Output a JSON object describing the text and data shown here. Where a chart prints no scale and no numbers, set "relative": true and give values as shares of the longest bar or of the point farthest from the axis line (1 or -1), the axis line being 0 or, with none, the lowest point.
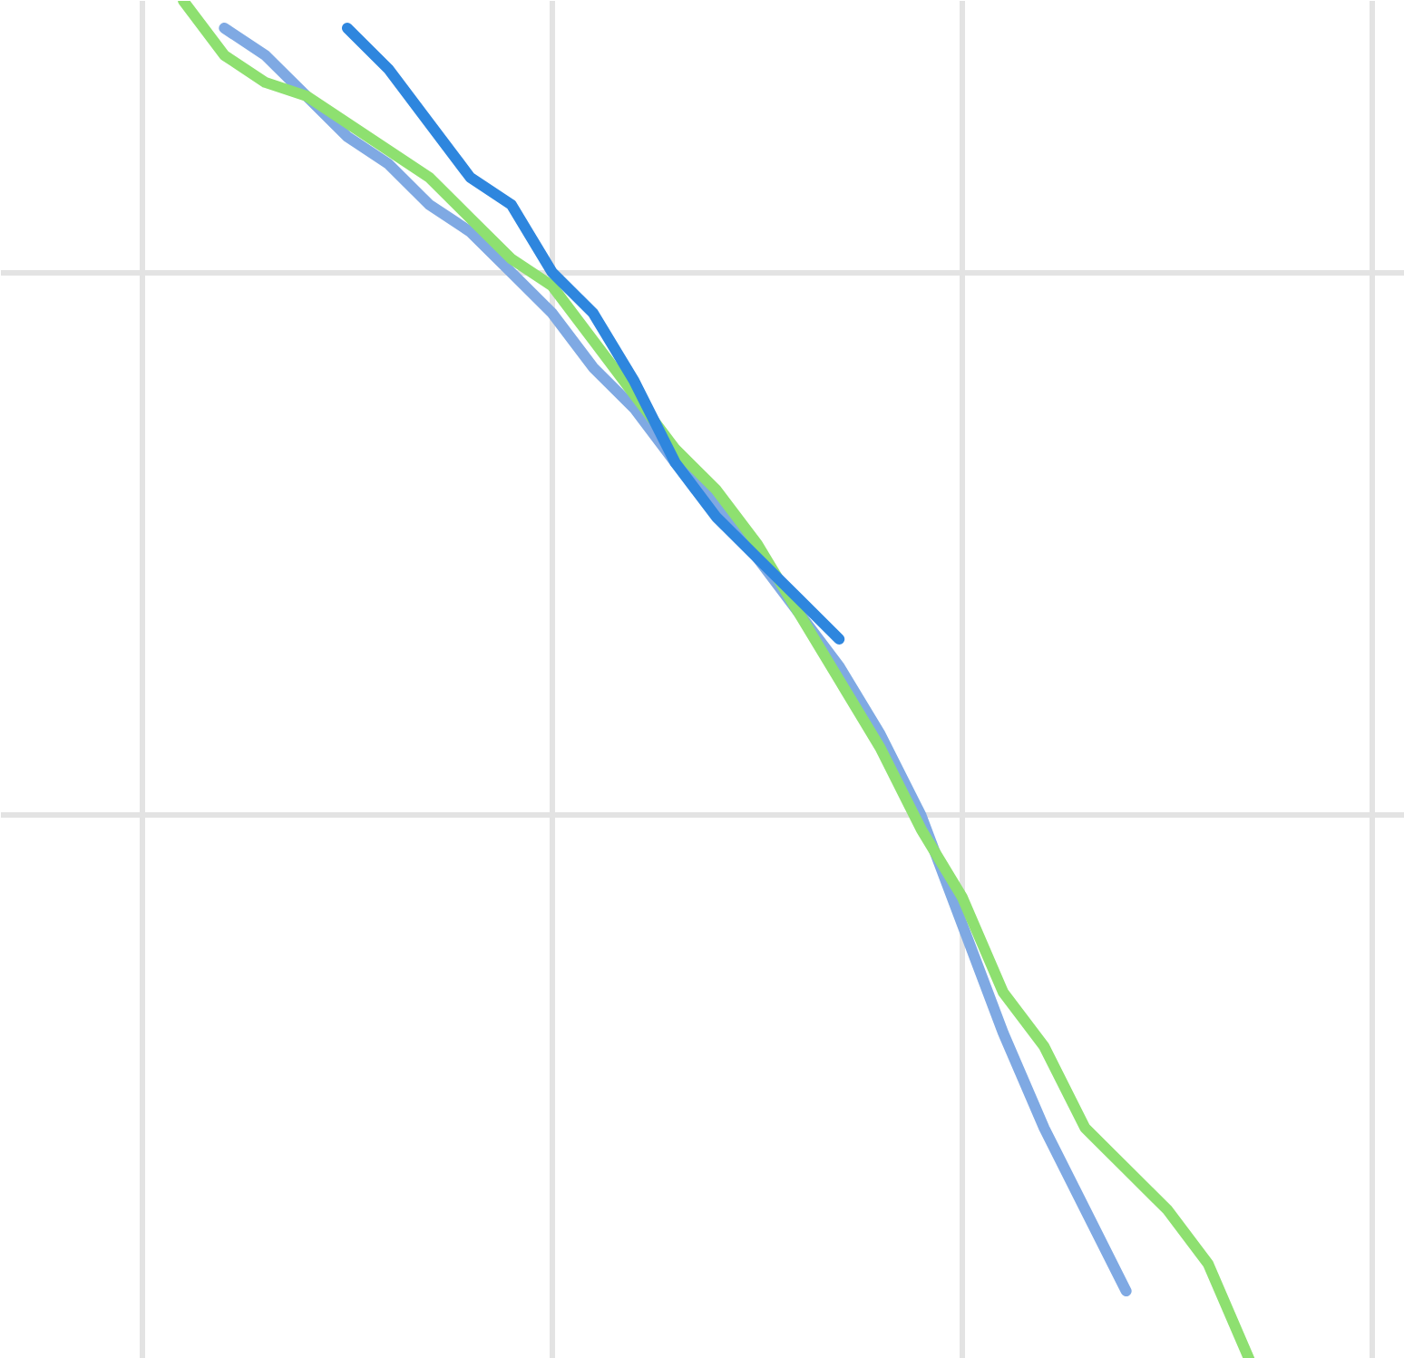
{
  "chart_data": {
    "type": "line",
    "relative": true,
    "grid": true,
    "categories": [
      null,
      null,
      null,
      null,
      null,
      null,
      null,
      null,
      null,
      null,
      null,
      null,
      null,
      null,
      null,
      null,
      null,
      null,
      null,
      null,
      null,
      null,
      null,
      null,
      null,
      null,
      null,
      null,
      null,
      null,
      null,
      null,
      null,
      null
    ],
    "series": [
      {
        "color": "#7fa9e3",
        "values": [
          null,
          null,
          null,
          null,
          null,
          0.98,
          0.96,
          0.93,
          0.9,
          0.88,
          0.85,
          0.83,
          0.8,
          0.77,
          0.73,
          0.7,
          0.66,
          0.63,
          0.59,
          0.55,
          0.51,
          0.46,
          0.4,
          0.32,
          0.24,
          0.17,
          0.11,
          0.05,
          null,
          null,
          null,
          null,
          null,
          null
        ]
      },
      {
        "color": "#8ee070",
        "values": [
          null,
          null,
          null,
          null,
          1.0,
          0.96,
          0.94,
          0.93,
          0.91,
          0.89,
          0.87,
          0.84,
          0.81,
          0.79,
          0.75,
          0.71,
          0.67,
          0.64,
          0.6,
          0.55,
          0.5,
          0.45,
          0.39,
          0.34,
          0.27,
          0.23,
          0.17,
          0.14,
          0.11,
          0.07,
          0.0,
          null,
          null,
          null
        ]
      },
      {
        "color": "#2e86de",
        "values": [
          null,
          null,
          null,
          null,
          null,
          null,
          null,
          null,
          0.98,
          0.95,
          0.91,
          0.87,
          0.85,
          0.8,
          0.77,
          0.72,
          0.66,
          0.62,
          0.59,
          0.56,
          0.53,
          null,
          null,
          null,
          null,
          null,
          null,
          null,
          null,
          null,
          null,
          null,
          null,
          null
        ]
      }
    ]
  }
}
